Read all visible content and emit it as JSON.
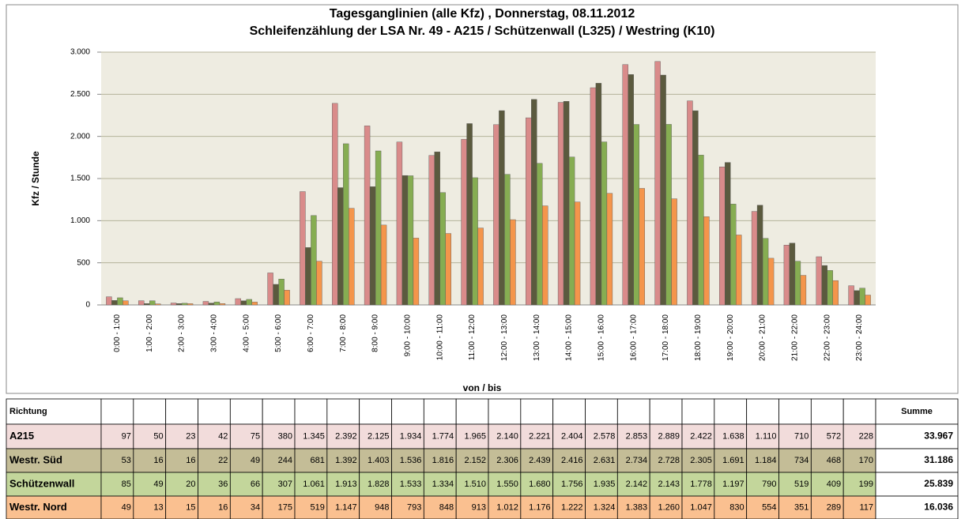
{
  "chart_data": {
    "type": "bar",
    "title": "Tagesganglinien  (alle Kfz) , Donnerstag, 08.11.2012",
    "subtitle": "Schleifenzählung der LSA  Nr. 49 - A215 /  Schützenwall (L325) / Westring (K10)",
    "y_label": "Kfz / Stunde",
    "x_label": "von / bis",
    "table_header": {
      "direction": "Richtung",
      "sum": "Summe"
    },
    "categories": [
      "0:00 - 1:00",
      "1:00 - 2:00",
      "2:00 - 3:00",
      "3:00 - 4:00",
      "4:00 - 5:00",
      "5:00 - 6:00",
      "6:00 - 7:00",
      "7:00 - 8:00",
      "8:00 - 9:00",
      "9:00 - 10:00",
      "10:00 - 11:00",
      "11:00 - 12:00",
      "12:00 - 13:00",
      "13:00 - 14:00",
      "14:00 - 15:00",
      "15:00 - 16:00",
      "16:00 - 17:00",
      "17:00 - 18:00",
      "18:00 - 19:00",
      "19:00 - 20:00",
      "20:00 - 21:00",
      "21:00 - 22:00",
      "22:00 - 23:00",
      "23:00 - 24:00"
    ],
    "series": [
      {
        "name": "A215",
        "color": "#d98b8a",
        "row_color": "#f2dcdb",
        "values": [
          97,
          50,
          23,
          42,
          75,
          380,
          1345,
          2392,
          2125,
          1934,
          1774,
          1965,
          2140,
          2221,
          2404,
          2578,
          2853,
          2889,
          2422,
          1638,
          1110,
          710,
          572,
          228
        ],
        "value_labels": [
          "97",
          "50",
          "23",
          "42",
          "75",
          "380",
          "1.345",
          "2.392",
          "2.125",
          "1.934",
          "1.774",
          "1.965",
          "2.140",
          "2.221",
          "2.404",
          "2.578",
          "2.853",
          "2.889",
          "2.422",
          "1.638",
          "1.110",
          "710",
          "572",
          "228"
        ],
        "sum": 33967,
        "sum_label": "33.967"
      },
      {
        "name": "Westr. Süd",
        "color": "#5b5a3e",
        "row_color": "#c4bd97",
        "values": [
          53,
          16,
          16,
          22,
          49,
          244,
          681,
          1392,
          1403,
          1536,
          1816,
          2152,
          2306,
          2439,
          2416,
          2631,
          2734,
          2728,
          2305,
          1691,
          1184,
          734,
          468,
          170
        ],
        "value_labels": [
          "53",
          "16",
          "16",
          "22",
          "49",
          "244",
          "681",
          "1.392",
          "1.403",
          "1.536",
          "1.816",
          "2.152",
          "2.306",
          "2.439",
          "2.416",
          "2.631",
          "2.734",
          "2.728",
          "2.305",
          "1.691",
          "1.184",
          "734",
          "468",
          "170"
        ],
        "sum": 31186,
        "sum_label": "31.186"
      },
      {
        "name": "Schützenwall",
        "color": "#86ad52",
        "row_color": "#c3d69b",
        "values": [
          85,
          49,
          20,
          36,
          66,
          307,
          1061,
          1913,
          1828,
          1533,
          1334,
          1510,
          1550,
          1680,
          1756,
          1935,
          2142,
          2143,
          1778,
          1197,
          790,
          519,
          409,
          199
        ],
        "value_labels": [
          "85",
          "49",
          "20",
          "36",
          "66",
          "307",
          "1.061",
          "1.913",
          "1.828",
          "1.533",
          "1.334",
          "1.510",
          "1.550",
          "1.680",
          "1.756",
          "1.935",
          "2.142",
          "2.143",
          "1.778",
          "1.197",
          "790",
          "519",
          "409",
          "199"
        ],
        "sum": 25839,
        "sum_label": "25.839"
      },
      {
        "name": "Westr. Nord",
        "color": "#f4954b",
        "row_color": "#fac090",
        "values": [
          49,
          13,
          15,
          16,
          34,
          175,
          519,
          1147,
          948,
          793,
          848,
          913,
          1012,
          1176,
          1222,
          1324,
          1383,
          1260,
          1047,
          830,
          554,
          351,
          289,
          117
        ],
        "value_labels": [
          "49",
          "13",
          "15",
          "16",
          "34",
          "175",
          "519",
          "1.147",
          "948",
          "793",
          "848",
          "913",
          "1.012",
          "1.176",
          "1.222",
          "1.324",
          "1.383",
          "1.260",
          "1.047",
          "830",
          "554",
          "351",
          "289",
          "117"
        ],
        "sum": 16036,
        "sum_label": "16.036"
      }
    ],
    "ylim": [
      0,
      3000
    ],
    "yticks": [
      0,
      500,
      {
        "value": 1000,
        "label": "1.000"
      },
      {
        "value": 1500,
        "label": "1.500"
      },
      {
        "value": 2000,
        "label": "2.000"
      },
      {
        "value": 2500,
        "label": "2.500"
      },
      {
        "value": 3000,
        "label": "3.000"
      }
    ],
    "grid": true
  }
}
